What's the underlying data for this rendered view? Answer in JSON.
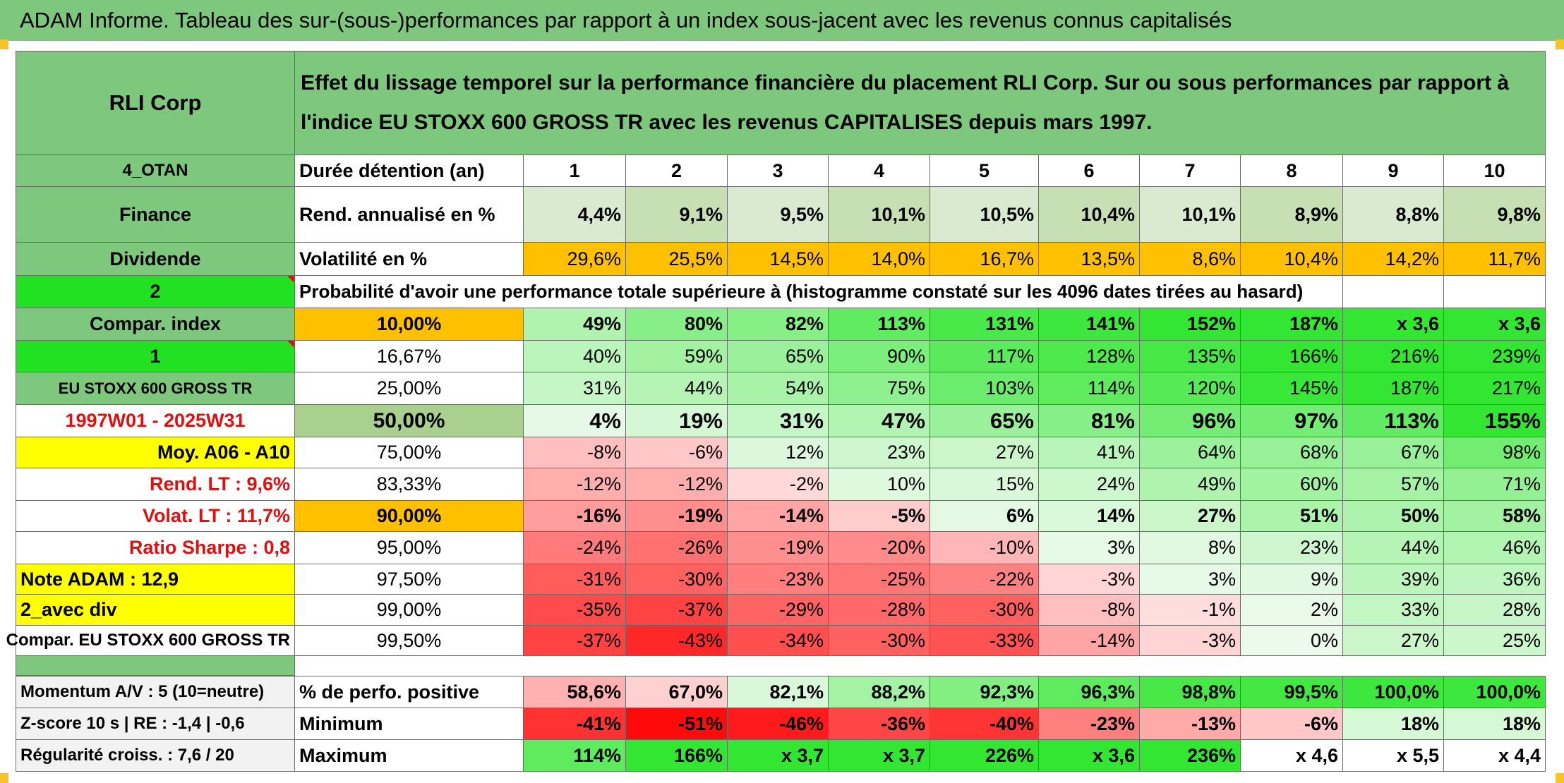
{
  "title": "ADAM Informe. Tableau des sur-(sous-)performances par rapport à un index sous-jacent avec les revenus connus capitalisés",
  "header": {
    "company": "RLI Corp",
    "description": "Effet du lissage temporel sur la performance financière du placement RLI Corp. Sur ou sous performances par rapport à l'indice EU STOXX 600 GROSS TR avec les revenus CAPITALISES depuis mars 1997."
  },
  "left_labels": {
    "code": "4_OTAN",
    "sector": "Finance",
    "type": "Dividende",
    "value_2": "2",
    "compar_index": "Compar. index",
    "value_1": "1",
    "index_name": "EU STOXX 600 GROSS TR",
    "period": "1997W01 - 2025W31",
    "moy": "Moy. A06 - A10",
    "rend_lt": "Rend. LT :   9,6%",
    "volat_lt": "Volat. LT :   11,7%",
    "sharpe": "Ratio Sharpe :   0,8",
    "note_adam": "Note ADAM : 12,9",
    "avec_div": "2_avec div",
    "compar_full": "Compar. EU STOXX 600 GROSS TR",
    "momentum": "Momentum A/V : 5 (10=neutre)",
    "zscore": "Z-score 10 s | RE : -1,4 | -0,6",
    "regularite": "Régularité croiss. : 7,6 / 20"
  },
  "table": {
    "durations_label": "Durée détention (an)",
    "years": [
      "1",
      "2",
      "3",
      "4",
      "5",
      "6",
      "7",
      "8",
      "9",
      "10"
    ],
    "rend_label": "Rend. annualisé en %",
    "rend": [
      "4,4%",
      "9,1%",
      "9,5%",
      "10,1%",
      "10,5%",
      "10,4%",
      "10,1%",
      "8,9%",
      "8,8%",
      "9,8%"
    ],
    "vol_label": "Volatilité en %",
    "vol": [
      "29,6%",
      "25,5%",
      "14,5%",
      "14,0%",
      "16,7%",
      "13,5%",
      "8,6%",
      "10,4%",
      "14,2%",
      "11,7%"
    ],
    "prob_label": "Probabilité d'avoir une performance totale supérieure à (histogramme constaté sur les 4096 dates tirées au hasard)",
    "percentile_rows": [
      {
        "pct": "10,00%",
        "values": [
          "49%",
          "80%",
          "82%",
          "113%",
          "131%",
          "141%",
          "152%",
          "187%",
          "x 3,6",
          "x 3,6"
        ]
      },
      {
        "pct": "16,67%",
        "values": [
          "40%",
          "59%",
          "65%",
          "90%",
          "117%",
          "128%",
          "135%",
          "166%",
          "216%",
          "239%"
        ]
      },
      {
        "pct": "25,00%",
        "values": [
          "31%",
          "44%",
          "54%",
          "75%",
          "103%",
          "114%",
          "120%",
          "145%",
          "187%",
          "217%"
        ]
      },
      {
        "pct": "50,00%",
        "values": [
          "4%",
          "19%",
          "31%",
          "47%",
          "65%",
          "81%",
          "96%",
          "97%",
          "113%",
          "155%"
        ]
      },
      {
        "pct": "75,00%",
        "values": [
          "-8%",
          "-6%",
          "12%",
          "23%",
          "27%",
          "41%",
          "64%",
          "68%",
          "67%",
          "98%"
        ]
      },
      {
        "pct": "83,33%",
        "values": [
          "-12%",
          "-12%",
          "-2%",
          "10%",
          "15%",
          "24%",
          "49%",
          "60%",
          "57%",
          "71%"
        ]
      },
      {
        "pct": "90,00%",
        "values": [
          "-16%",
          "-19%",
          "-14%",
          "-5%",
          "6%",
          "14%",
          "27%",
          "51%",
          "50%",
          "58%"
        ]
      },
      {
        "pct": "95,00%",
        "values": [
          "-24%",
          "-26%",
          "-19%",
          "-20%",
          "-10%",
          "3%",
          "8%",
          "23%",
          "44%",
          "46%"
        ]
      },
      {
        "pct": "97,50%",
        "values": [
          "-31%",
          "-30%",
          "-23%",
          "-25%",
          "-22%",
          "-3%",
          "3%",
          "9%",
          "39%",
          "36%"
        ]
      },
      {
        "pct": "99,00%",
        "values": [
          "-35%",
          "-37%",
          "-29%",
          "-28%",
          "-30%",
          "-8%",
          "-1%",
          "2%",
          "33%",
          "28%"
        ]
      },
      {
        "pct": "99,50%",
        "values": [
          "-37%",
          "-43%",
          "-34%",
          "-30%",
          "-33%",
          "-14%",
          "-3%",
          "0%",
          "27%",
          "25%"
        ]
      }
    ],
    "pos_label": "% de perfo. positive",
    "pos": [
      "58,6%",
      "67,0%",
      "82,1%",
      "88,2%",
      "92,3%",
      "96,3%",
      "98,8%",
      "99,5%",
      "100,0%",
      "100,0%"
    ],
    "min_label": "Minimum",
    "min": [
      "-41%",
      "-51%",
      "-46%",
      "-36%",
      "-40%",
      "-23%",
      "-13%",
      "-6%",
      "18%",
      "18%"
    ],
    "max_label": "Maximum",
    "max": [
      "114%",
      "166%",
      "x 3,7",
      "x 3,7",
      "226%",
      "x 3,6",
      "236%",
      "x 4,6",
      "x 5,5",
      "x 4,4"
    ]
  },
  "colors": {
    "header_green": "#7ec87e",
    "bright_green": "#22e022",
    "yellow": "#ffff00",
    "orange": "#ffc000",
    "rend_light": "#c6e0b4",
    "rend_dark": "#a9d08e",
    "red_text": "#e01010"
  }
}
